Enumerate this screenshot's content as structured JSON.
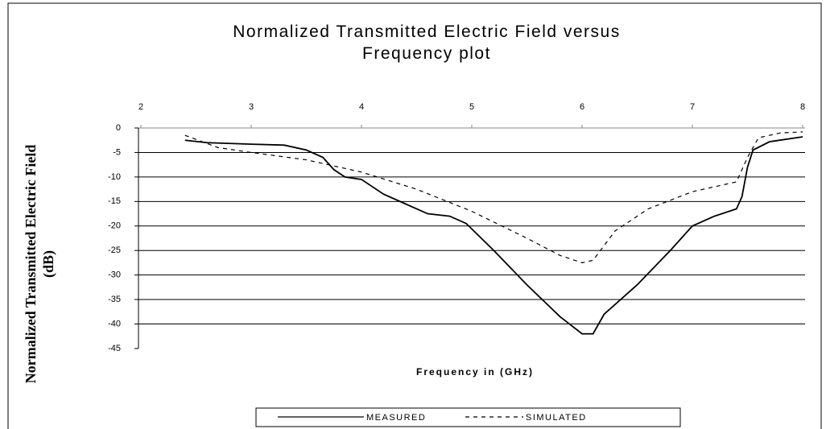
{
  "chart_data": {
    "type": "line",
    "title": "Normalized Transmitted Electric Field versus Frequency plot",
    "x_label": "Frequency in (GHz)",
    "y_label": "Normalized Transmitted Electric Field  (dB)",
    "xlim": [
      2,
      8
    ],
    "xticks": [
      2,
      3,
      4,
      5,
      6,
      7,
      8
    ],
    "ylim": [
      -45,
      0
    ],
    "yticks": [
      0,
      -5,
      -10,
      -15,
      -20,
      -25,
      -30,
      -35,
      -40,
      -45
    ],
    "grid": true,
    "legend": "bottom",
    "series": [
      {
        "name": "MEASURED",
        "color": "#000000",
        "line_style": "solid",
        "x": [
          2.4,
          2.6,
          3.0,
          3.3,
          3.5,
          3.65,
          3.75,
          3.85,
          4.0,
          4.2,
          4.4,
          4.6,
          4.8,
          4.95,
          5.2,
          5.5,
          5.8,
          6.0,
          6.1,
          6.2,
          6.5,
          6.8,
          7.0,
          7.2,
          7.4,
          7.45,
          7.5,
          7.55,
          7.7,
          8.0
        ],
        "values": [
          -2.5,
          -3,
          -3.3,
          -3.5,
          -4.5,
          -6,
          -8.5,
          -10,
          -10.5,
          -13.5,
          -15.5,
          -17.5,
          -18,
          -19.5,
          -25,
          -32,
          -38.5,
          -42,
          -42,
          -38,
          -32,
          -25,
          -20,
          -18,
          -16.5,
          -14,
          -8,
          -4.5,
          -2.8,
          -1.8
        ]
      },
      {
        "name": "SIMULATED",
        "color": "#000000",
        "line_style": "dashed",
        "x": [
          2.4,
          2.7,
          3.0,
          3.5,
          4.0,
          4.5,
          5.0,
          5.5,
          5.8,
          6.0,
          6.1,
          6.3,
          6.6,
          7.0,
          7.3,
          7.4,
          7.5,
          7.6,
          7.8,
          8.0
        ],
        "values": [
          -1.5,
          -4,
          -5,
          -6.5,
          -9,
          -12.5,
          -17,
          -22.5,
          -26,
          -27.5,
          -27,
          -21,
          -16.5,
          -13,
          -11.5,
          -11,
          -6,
          -2,
          -1,
          -0.8
        ]
      }
    ]
  }
}
